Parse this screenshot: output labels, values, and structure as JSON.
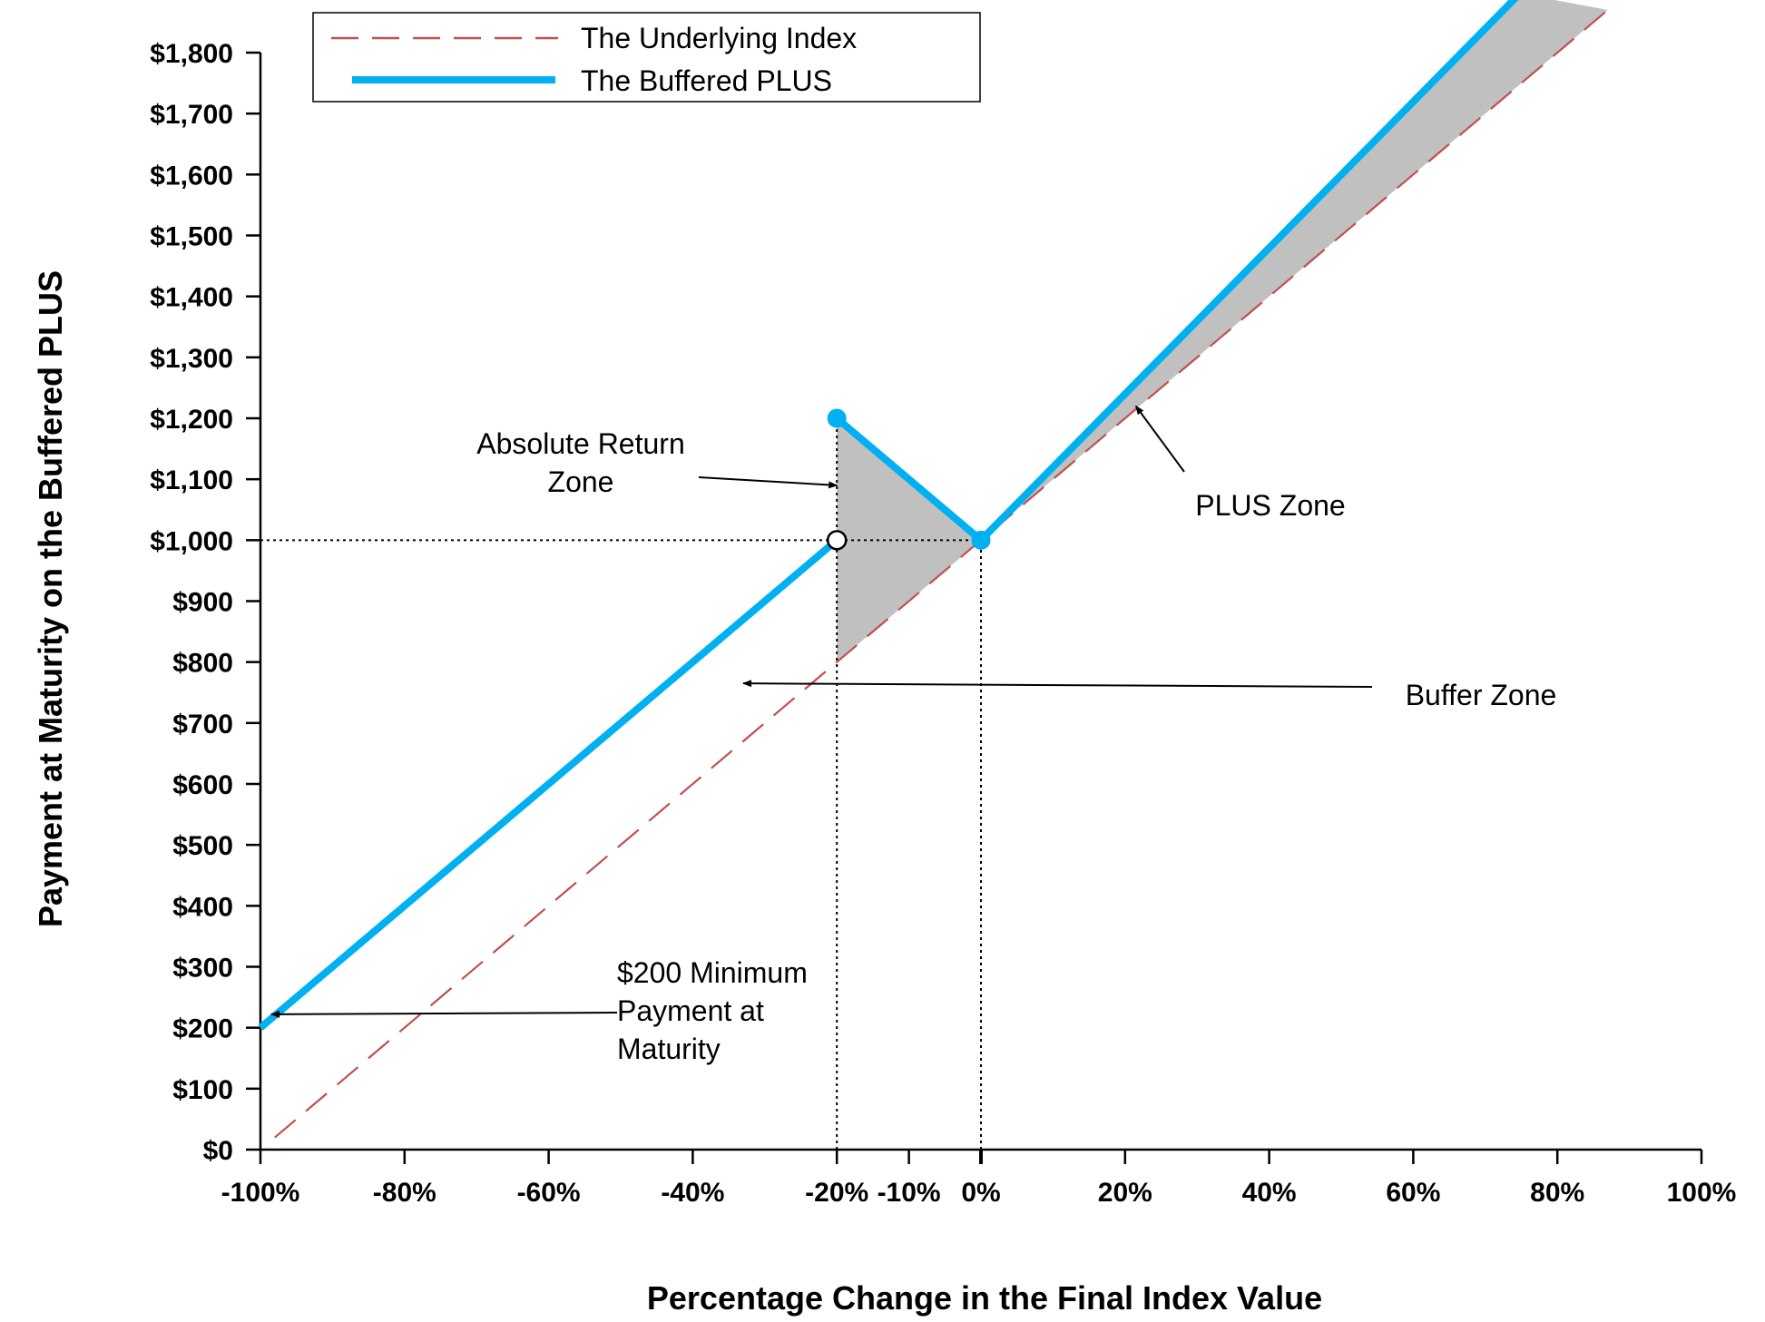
{
  "chart_data": {
    "type": "line",
    "xlabel": "Percentage Change in the Final Index Value",
    "ylabel": "Payment at Maturity on the Buffered PLUS",
    "xlim": [
      -100,
      100
    ],
    "ylim": [
      0,
      1800
    ],
    "x_ticks": [
      -100,
      -80,
      -60,
      -40,
      -20,
      -10,
      0,
      20,
      40,
      60,
      80,
      100
    ],
    "x_tick_labels": [
      "-100%",
      "-80%",
      "-60%",
      "-40%",
      "-20%",
      "-10%",
      "0%",
      "20%",
      "40%",
      "60%",
      "80%",
      "100%"
    ],
    "y_ticks": [
      0,
      100,
      200,
      300,
      400,
      500,
      600,
      700,
      800,
      900,
      1000,
      1100,
      1200,
      1300,
      1400,
      1500,
      1600,
      1700,
      1800
    ],
    "y_tick_labels": [
      "$0",
      "$100",
      "$200",
      "$300",
      "$400",
      "$500",
      "$600",
      "$700",
      "$800",
      "$900",
      "$1,000",
      "$1,100",
      "$1,200",
      "$1,300",
      "$1,400",
      "$1,500",
      "$1,600",
      "$1,700",
      "$1,800"
    ],
    "grid": false,
    "legend": {
      "placement": "top-center",
      "entries": [
        {
          "label": "The Underlying Index",
          "style": "dashed",
          "color": "#c0504d"
        },
        {
          "label": "The Buffered PLUS",
          "style": "solid",
          "color": "#00b0f0"
        }
      ]
    },
    "series": [
      {
        "name": "The Underlying Index",
        "color": "#c0504d",
        "style": "dashed",
        "segments": [
          {
            "x": [
              -98,
              87
            ],
            "y": [
              20,
              1870
            ]
          }
        ]
      },
      {
        "name": "The Buffered PLUS",
        "color": "#00b0f0",
        "style": "solid",
        "segments": [
          {
            "x": [
              -100,
              -20
            ],
            "y": [
              200,
              1000
            ]
          },
          {
            "x": [
              -20,
              0
            ],
            "y": [
              1200,
              1000
            ]
          },
          {
            "x": [
              0,
              74.8
            ],
            "y": [
              1000,
              1897
            ]
          }
        ]
      }
    ],
    "markers": [
      {
        "x": -20,
        "y": 1200,
        "fill": "#00b0f0"
      },
      {
        "x": -20,
        "y": 1000,
        "fill": "#ffffff"
      },
      {
        "x": 0,
        "y": 1000,
        "fill": "#00b0f0"
      }
    ],
    "shaded_regions": [
      {
        "x": [
          -20,
          0,
          -20
        ],
        "y": [
          1200,
          1000,
          800
        ],
        "color": "#c0c0c0"
      },
      {
        "x": [
          0,
          74.8,
          87
        ],
        "y": [
          1000,
          1897,
          1870
        ],
        "color": "#c0c0c0"
      }
    ],
    "reference_lines": [
      {
        "x": [
          -100,
          0
        ],
        "y": [
          1000,
          1000
        ]
      },
      {
        "x": [
          -20,
          -20
        ],
        "y": [
          0,
          1200
        ]
      },
      {
        "x": [
          0,
          0
        ],
        "y": [
          0,
          1000
        ]
      }
    ],
    "annotations": [
      {
        "lines": [
          "Absolute Return",
          "Zone"
        ],
        "arrow_to": {
          "x": -20,
          "y": 1090
        }
      },
      {
        "lines": [
          "PLUS Zone"
        ],
        "arrow_to": {
          "x": 21.5,
          "y": 1220
        }
      },
      {
        "lines": [
          "Buffer  Zone"
        ],
        "arrow_to": {
          "x": -33,
          "y": 765
        }
      },
      {
        "lines": [
          "$200 Minimum",
          "Payment at",
          "Maturity"
        ],
        "arrow_to": {
          "x": -98.5,
          "y": 222
        }
      }
    ]
  }
}
